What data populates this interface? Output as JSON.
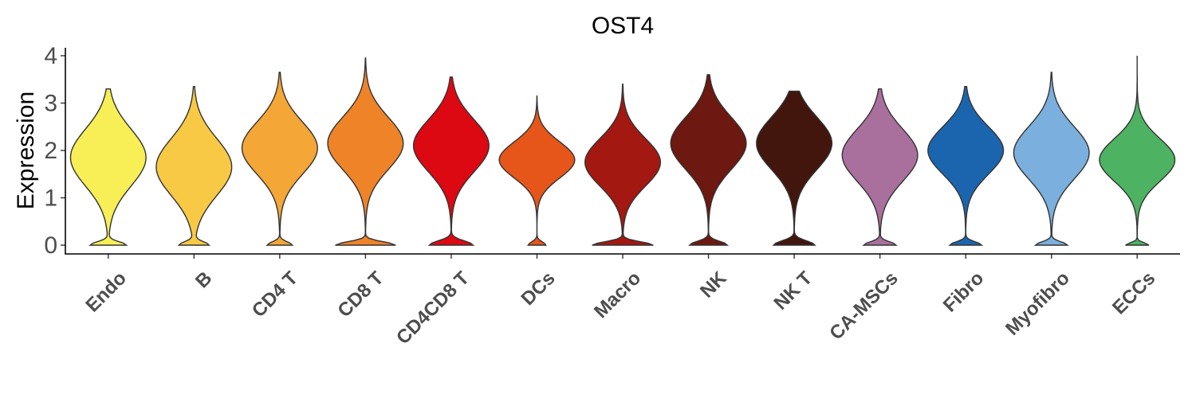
{
  "chart_data": {
    "type": "violin",
    "title": "OST4",
    "xlabel": "",
    "ylabel": "Expression",
    "ylim": [
      -0.2,
      4.15
    ],
    "yticks": [
      "0",
      "1",
      "2",
      "3",
      "4"
    ],
    "grid": false,
    "legend": "none",
    "categories": [
      "Endo",
      "B",
      "CD4 T",
      "CD8 T",
      "CD4CD8 T",
      "DCs",
      "Macro",
      "NK",
      "NK T",
      "CA-MSCs",
      "Fibro",
      "Myofibro",
      "ECCs"
    ],
    "colors": [
      "#F7EF55",
      "#F8C944",
      "#F4A636",
      "#EE8328",
      "#DC0812",
      "#E6551A",
      "#A31811",
      "#6D1810",
      "#42150D",
      "#A96F9D",
      "#1B65AF",
      "#7BAFDD",
      "#4DB262"
    ],
    "violins": [
      {
        "category": "Endo",
        "max": 3.3,
        "modes": [
          [
            0.0,
            0.4,
            0.07
          ],
          [
            1.85,
            0.85,
            0.6
          ]
        ]
      },
      {
        "category": "B",
        "max": 3.35,
        "modes": [
          [
            0.0,
            0.32,
            0.07
          ],
          [
            1.65,
            0.85,
            0.6
          ]
        ]
      },
      {
        "category": "CD4 T",
        "max": 3.65,
        "modes": [
          [
            0.0,
            0.3,
            0.07
          ],
          [
            2.05,
            0.9,
            0.55
          ]
        ]
      },
      {
        "category": "CD8 T",
        "max": 3.95,
        "modes": [
          [
            0.0,
            0.4,
            0.07
          ],
          [
            2.15,
            0.5,
            0.55
          ]
        ]
      },
      {
        "category": "CD4CD8 T",
        "max": 3.55,
        "modes": [
          [
            0.0,
            0.55,
            0.09
          ],
          [
            2.1,
            0.95,
            0.55
          ]
        ]
      },
      {
        "category": "DCs",
        "max": 3.15,
        "modes": [
          [
            0.0,
            0.2,
            0.07
          ],
          [
            1.8,
            0.85,
            0.38
          ]
        ]
      },
      {
        "category": "Macro",
        "max": 3.4,
        "modes": [
          [
            0.0,
            0.5,
            0.07
          ],
          [
            1.75,
            0.62,
            0.5
          ]
        ]
      },
      {
        "category": "NK",
        "max": 3.6,
        "modes": [
          [
            0.0,
            0.45,
            0.08
          ],
          [
            2.15,
            0.9,
            0.55
          ]
        ]
      },
      {
        "category": "NK T",
        "max": 3.25,
        "modes": [
          [
            0.0,
            0.52,
            0.09
          ],
          [
            2.15,
            0.95,
            0.55
          ]
        ]
      },
      {
        "category": "CA-MSCs",
        "max": 3.3,
        "modes": [
          [
            0.0,
            0.35,
            0.07
          ],
          [
            1.9,
            0.82,
            0.55
          ]
        ]
      },
      {
        "category": "Fibro",
        "max": 3.35,
        "modes": [
          [
            0.0,
            0.38,
            0.07
          ],
          [
            2.0,
            0.9,
            0.5
          ]
        ]
      },
      {
        "category": "Myofibro",
        "max": 3.65,
        "modes": [
          [
            0.0,
            0.4,
            0.07
          ],
          [
            1.95,
            0.95,
            0.55
          ]
        ]
      },
      {
        "category": "ECCs",
        "max": 4.0,
        "modes": [
          [
            0.0,
            0.28,
            0.05
          ],
          [
            1.8,
            0.9,
            0.45
          ]
        ]
      }
    ]
  }
}
